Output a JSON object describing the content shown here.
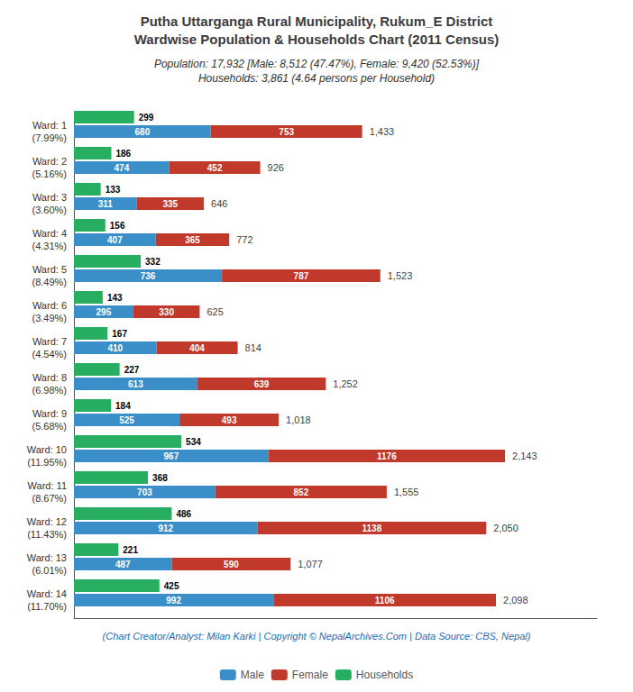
{
  "chart_data": {
    "type": "bar",
    "orientation": "horizontal",
    "title": "Putha Uttarganga Rural Municipality, Rukum_E District\nWardwise Population & Households Chart (2011 Census)",
    "subtitle": "Population: 17,932 [Male: 8,512 (47.47%), Female: 9,420 (52.53%)]\nHouseholds: 3,861 (4.64 persons per Household)",
    "annotations": [
      "(Chart Creator/Analyst: Milan Karki | Copyright © NepalArchives.Com | Data Source: CBS, Nepal)"
    ],
    "categories": [
      "Ward: 1\n(7.99%)",
      "Ward: 2\n(5.16%)",
      "Ward: 3\n(3.60%)",
      "Ward: 4\n(4.31%)",
      "Ward: 5\n(8.49%)",
      "Ward: 6\n(3.49%)",
      "Ward: 7\n(4.54%)",
      "Ward: 8\n(6.98%)",
      "Ward: 9\n(5.68%)",
      "Ward: 10\n(11.95%)",
      "Ward: 11\n(8.67%)",
      "Ward: 12\n(11.43%)",
      "Ward: 13\n(6.01%)",
      "Ward: 14\n(11.70%)"
    ],
    "series": [
      {
        "name": "Male",
        "color": "#3a8fc8",
        "stacked": true,
        "values": [
          680,
          474,
          311,
          407,
          736,
          295,
          410,
          613,
          525,
          967,
          703,
          912,
          487,
          992
        ]
      },
      {
        "name": "Female",
        "color": "#c0392b",
        "stacked": true,
        "values": [
          753,
          452,
          335,
          365,
          787,
          330,
          404,
          639,
          493,
          1176,
          852,
          1138,
          590,
          1106
        ]
      },
      {
        "name": "Households",
        "color": "#27ae60",
        "stacked": false,
        "values": [
          299,
          186,
          133,
          156,
          332,
          143,
          167,
          227,
          184,
          534,
          368,
          486,
          221,
          425
        ]
      }
    ],
    "totals": [
      1433,
      926,
      646,
      772,
      1523,
      625,
      814,
      1252,
      1018,
      2143,
      1555,
      2050,
      1077,
      2098
    ],
    "total_labels": [
      "1,433",
      "926",
      "646",
      "772",
      "1,523",
      "625",
      "814",
      "1,252",
      "1,018",
      "2,143",
      "1,555",
      "2,050",
      "1,077",
      "2,098"
    ],
    "xlim": [
      0,
      2600
    ],
    "data_labels": true,
    "tick_labels": "y",
    "grid": false,
    "legend": "bottom"
  }
}
